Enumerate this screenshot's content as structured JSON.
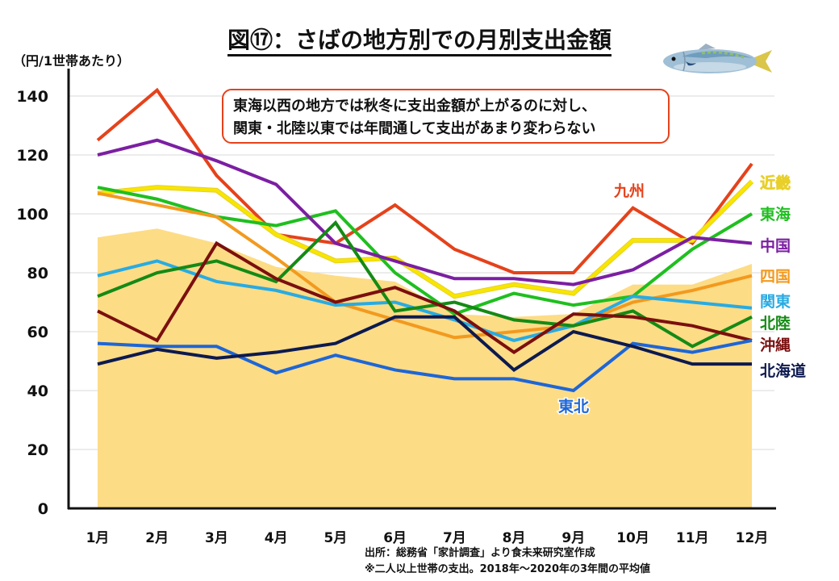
{
  "title": "図⑰：さばの地方別での月別支出金額",
  "unit_label": "（円/1世帯あたり）",
  "callout": {
    "line1": "東海以西の地方では秋冬に支出金額が上がるのに対し、",
    "line2": "関東・北陸以東では年間通して支出があまり変わらない"
  },
  "source": {
    "line1": "出所：総務省「家計調査」より食未来研究室作成",
    "line2": "※二人以上世帯の支出。2018年～2020年の3年間の平均値"
  },
  "fish_icon": "mackerel-fish-illustration",
  "chart_data": {
    "type": "line",
    "title": "図⑰：さばの地方別での月別支出金額",
    "xlabel": "",
    "ylabel": "（円/1世帯あたり）",
    "ylim": [
      0,
      140
    ],
    "yticks": [
      0,
      20,
      40,
      60,
      80,
      100,
      120,
      140
    ],
    "grid": true,
    "categories": [
      "1月",
      "2月",
      "3月",
      "4月",
      "5月",
      "6月",
      "7月",
      "8月",
      "9月",
      "10月",
      "11月",
      "12月"
    ],
    "area": {
      "name": "background-area",
      "color": "#fddc86",
      "values": [
        92,
        95,
        90,
        82,
        79,
        77,
        66,
        65,
        66,
        76,
        76,
        83
      ]
    },
    "series": [
      {
        "name": "九州",
        "color": "#e5421b",
        "label_position": "inline-top-10月",
        "values": [
          125,
          142,
          113,
          93,
          90,
          103,
          88,
          80,
          80,
          102,
          90,
          117
        ]
      },
      {
        "name": "近畿",
        "color": "#f7e600",
        "label_position": "right",
        "values": [
          107,
          109,
          108,
          93,
          84,
          85,
          72,
          76,
          73,
          91,
          91,
          111
        ]
      },
      {
        "name": "東海",
        "color": "#1fbf1f",
        "label_position": "right",
        "values": [
          109,
          105,
          99,
          96,
          101,
          80,
          66,
          73,
          69,
          72,
          88,
          100
        ]
      },
      {
        "name": "中国",
        "color": "#7b1fa2",
        "label_position": "right",
        "values": [
          120,
          125,
          118,
          110,
          90,
          84,
          78,
          78,
          76,
          81,
          92,
          90
        ]
      },
      {
        "name": "四国",
        "color": "#f29a1f",
        "label_position": "right",
        "values": [
          107,
          103,
          99,
          85,
          70,
          64,
          58,
          60,
          62,
          70,
          74,
          79
        ]
      },
      {
        "name": "関東",
        "color": "#29abe2",
        "label_position": "right",
        "values": [
          79,
          84,
          77,
          74,
          69,
          70,
          64,
          57,
          62,
          72,
          70,
          68
        ]
      },
      {
        "name": "北陸",
        "color": "#158a15",
        "label_position": "right",
        "values": [
          72,
          80,
          84,
          77,
          97,
          67,
          70,
          64,
          62,
          67,
          55,
          65
        ]
      },
      {
        "name": "沖縄",
        "color": "#7b0f0f",
        "label_position": "right",
        "values": [
          67,
          57,
          90,
          78,
          70,
          75,
          67,
          53,
          66,
          65,
          62,
          57
        ]
      },
      {
        "name": "東北",
        "color": "#1e66d6",
        "label_position": "inline-bottom-9月",
        "values": [
          56,
          55,
          55,
          46,
          52,
          47,
          44,
          44,
          40,
          56,
          53,
          57
        ]
      },
      {
        "name": "北海道",
        "color": "#0d1a4f",
        "label_position": "right",
        "values": [
          49,
          54,
          51,
          53,
          56,
          65,
          65,
          47,
          60,
          55,
          49,
          49
        ]
      }
    ]
  }
}
